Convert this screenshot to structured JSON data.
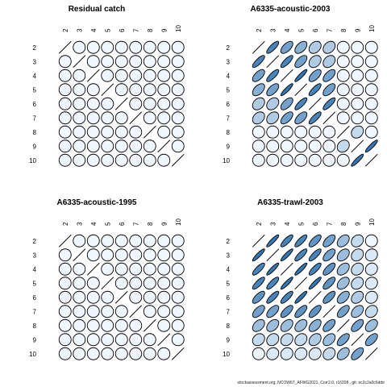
{
  "chart_data": [
    {
      "type": "heatmap",
      "title": "Residual catch",
      "ages": [
        "2",
        "3",
        "4",
        "5",
        "6",
        "7",
        "8",
        "9",
        "10"
      ],
      "correlation": [
        [
          1,
          0,
          0,
          0,
          0,
          0,
          0,
          0,
          0
        ],
        [
          0,
          1,
          0,
          0,
          0,
          0,
          0,
          0,
          0
        ],
        [
          0,
          0,
          1,
          0,
          0,
          0,
          0,
          0,
          0
        ],
        [
          0,
          0,
          0,
          1,
          0,
          0,
          0,
          0,
          0
        ],
        [
          0,
          0,
          0,
          0,
          1,
          0,
          0,
          0,
          0
        ],
        [
          0,
          0,
          0,
          0,
          0,
          1,
          0,
          0,
          0
        ],
        [
          0,
          0,
          0,
          0,
          0,
          0,
          1,
          0,
          0
        ],
        [
          0,
          0,
          0,
          0,
          0,
          0,
          0,
          1,
          0
        ],
        [
          0,
          0,
          0,
          0,
          0,
          0,
          0,
          0,
          1
        ]
      ]
    },
    {
      "type": "heatmap",
      "title": "A6335-acoustic-2003",
      "ages": [
        "2",
        "3",
        "4",
        "5",
        "6",
        "7",
        "8",
        "9",
        "10"
      ],
      "correlation": [
        [
          1,
          0.8,
          0.6,
          0.5,
          0.3,
          0.3,
          0,
          0,
          0
        ],
        [
          0.8,
          1,
          0.8,
          0.6,
          0.3,
          0.3,
          0,
          0,
          0
        ],
        [
          0.6,
          0.8,
          1,
          0.9,
          0.6,
          0.6,
          0,
          0,
          0
        ],
        [
          0.5,
          0.6,
          0.9,
          1,
          0.8,
          0.6,
          0,
          0,
          0
        ],
        [
          0.3,
          0.3,
          0.6,
          0.8,
          1,
          0.8,
          0,
          0,
          0
        ],
        [
          0.3,
          0.3,
          0.6,
          0.6,
          0.8,
          1,
          0,
          0,
          0
        ],
        [
          0,
          0,
          0,
          0,
          0,
          0,
          1,
          0.2,
          0
        ],
        [
          0,
          0,
          0,
          0,
          0,
          0,
          0.2,
          1,
          0.9
        ],
        [
          0,
          0,
          0,
          0,
          0,
          0,
          0,
          0.9,
          1
        ]
      ]
    },
    {
      "type": "heatmap",
      "title": "A6335-acoustic-1995",
      "ages": [
        "2",
        "3",
        "4",
        "5",
        "6",
        "7",
        "8",
        "9",
        "10"
      ],
      "correlation": [
        [
          1,
          0,
          0,
          0,
          0,
          0,
          0,
          0,
          0
        ],
        [
          0,
          1,
          0,
          0,
          0,
          0,
          0,
          0,
          0
        ],
        [
          0,
          0,
          1,
          0,
          0,
          0,
          0,
          0,
          0
        ],
        [
          0,
          0,
          0,
          1,
          0,
          0,
          0,
          0,
          0
        ],
        [
          0,
          0,
          0,
          0,
          1,
          0,
          0,
          0,
          0
        ],
        [
          0,
          0,
          0,
          0,
          0,
          1,
          0,
          0,
          0
        ],
        [
          0,
          0,
          0,
          0,
          0,
          0,
          1,
          0,
          0
        ],
        [
          0,
          0,
          0,
          0,
          0,
          0,
          0,
          1,
          0
        ],
        [
          0,
          0,
          0,
          0,
          0,
          0,
          0,
          0,
          1
        ]
      ]
    },
    {
      "type": "heatmap",
      "title": "A6335-trawl-2003",
      "ages": [
        "2",
        "3",
        "4",
        "5",
        "6",
        "7",
        "8",
        "9",
        "10"
      ],
      "correlation": [
        [
          1,
          0.9,
          0.8,
          0.8,
          0.7,
          0.6,
          0.4,
          0.2,
          0
        ],
        [
          0.9,
          1,
          0.9,
          0.8,
          0.8,
          0.6,
          0.4,
          0.2,
          0.1
        ],
        [
          0.8,
          0.9,
          1,
          0.9,
          0.8,
          0.7,
          0.4,
          0.2,
          0.1
        ],
        [
          0.8,
          0.8,
          0.9,
          1,
          0.9,
          0.7,
          0.4,
          0.2,
          0.1
        ],
        [
          0.7,
          0.8,
          0.8,
          0.9,
          1,
          0.7,
          0.5,
          0.3,
          0.1
        ],
        [
          0.6,
          0.6,
          0.7,
          0.7,
          0.7,
          1,
          0.6,
          0.4,
          0.2
        ],
        [
          0.4,
          0.4,
          0.4,
          0.4,
          0.5,
          0.6,
          1,
          0.6,
          0.4
        ],
        [
          0.2,
          0.2,
          0.2,
          0.2,
          0.3,
          0.4,
          0.6,
          1,
          0.6
        ],
        [
          0,
          0.1,
          0.1,
          0.1,
          0.1,
          0.2,
          0.4,
          0.6,
          1
        ]
      ]
    }
  ],
  "footer": "stockassessment.org, NCOW67_AFWG2021, Corr2.0, r16208 , git: ec2c2a0c6dde"
}
